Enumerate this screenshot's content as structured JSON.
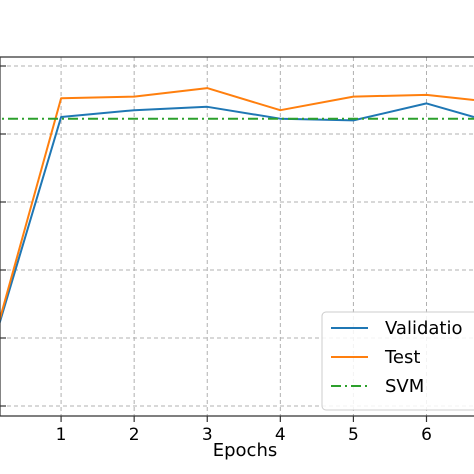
{
  "chart_data": {
    "type": "line",
    "xlabel": "Epochs",
    "ylabel": "",
    "x_ticks": [
      1,
      2,
      3,
      4,
      5,
      6
    ],
    "xlim": [
      0,
      6.65
    ],
    "ylim": [
      0,
      1
    ],
    "grid": true,
    "legend_position": "bottom-right",
    "series": [
      {
        "name": "Validatio",
        "color": "#1f77b4",
        "style": "solid",
        "x": [
          0,
          1,
          2,
          3,
          4,
          5,
          6,
          6.65
        ],
        "y": [
          0.13,
          0.85,
          0.87,
          0.88,
          0.845,
          0.84,
          0.89,
          0.85
        ]
      },
      {
        "name": "Test",
        "color": "#ff7f0e",
        "style": "solid",
        "x": [
          0,
          1,
          2,
          3,
          4,
          5,
          6,
          6.65
        ],
        "y": [
          0.13,
          0.905,
          0.91,
          0.935,
          0.87,
          0.91,
          0.915,
          0.9
        ]
      },
      {
        "name": "SVM",
        "color": "#2ca02c",
        "style": "dashdot",
        "x": [
          0,
          6.65
        ],
        "y": [
          0.845,
          0.845
        ]
      }
    ]
  }
}
